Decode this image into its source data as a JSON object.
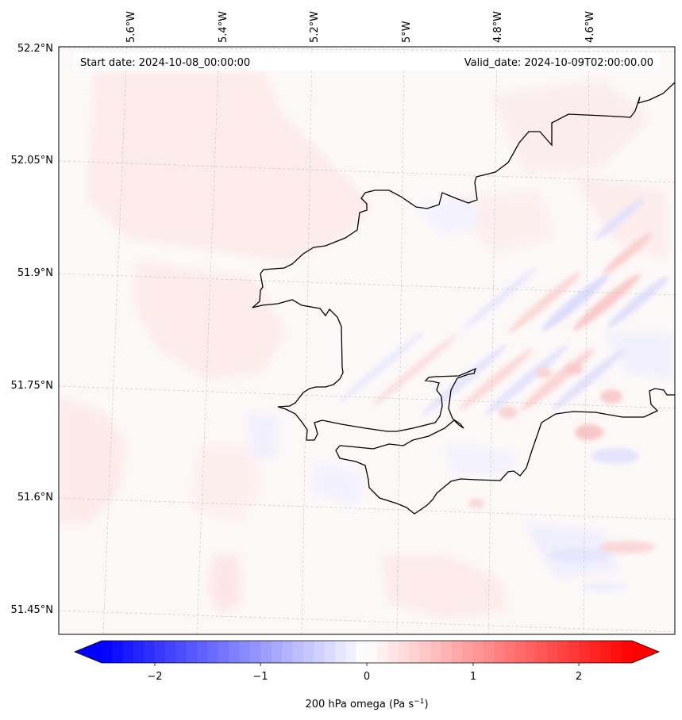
{
  "map": {
    "start_date": "Start date: 2024-10-08_00:00:00",
    "valid_date": "Valid_date: 2024-10-09T02:00:00.00",
    "lon_labels": [
      "5.6°W",
      "5.4°W",
      "5.2°W",
      "5°W",
      "4.8°W",
      "4.6°W"
    ],
    "lat_labels": [
      "52.2°N",
      "52.05°N",
      "51.9°N",
      "51.75°N",
      "51.6°N",
      "51.45°N"
    ],
    "field": "200 hPa omega",
    "colormap": "bwr",
    "colors": {
      "negative": "#0000ff",
      "zero": "#ffffff",
      "positive": "#ff0000",
      "coastline": "#000000",
      "gridline": "#bbbbbb"
    }
  },
  "colorbar": {
    "label_main": "200 hPa omega (Pa s",
    "label_exp": "−1",
    "label_close": ")",
    "range": [
      -2.5,
      2.5
    ],
    "extend": "both",
    "ticks": [
      "−2",
      "−1",
      "0",
      "1",
      "2"
    ]
  }
}
